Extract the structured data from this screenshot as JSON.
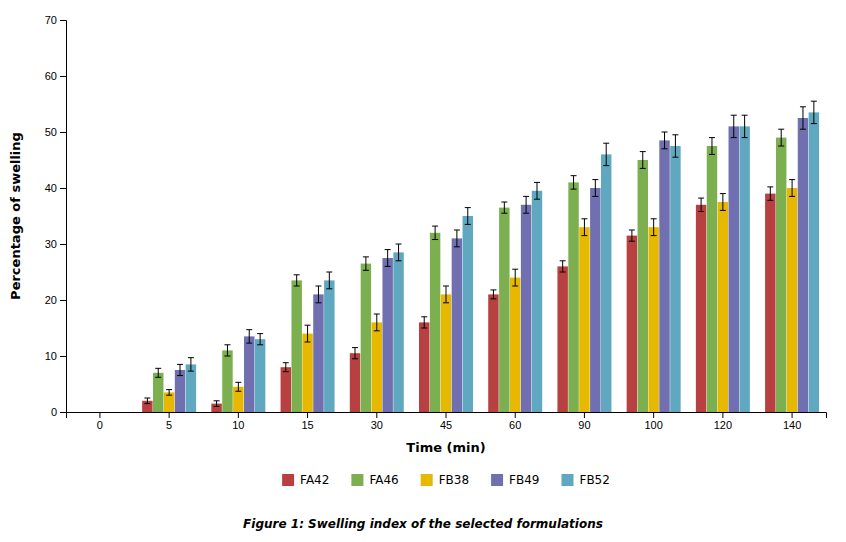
{
  "chart_data": {
    "type": "bar",
    "title": "Figure 1: Swelling index of the selected formulations",
    "xlabel": "Time (min)",
    "ylabel": "Percentage of swelling",
    "categories": [
      "0",
      "5",
      "10",
      "15",
      "30",
      "45",
      "60",
      "90",
      "100",
      "120",
      "140"
    ],
    "series": [
      {
        "name": "FA42",
        "color": "#B94040",
        "values": [
          null,
          2.0,
          1.5,
          8.0,
          10.5,
          16.0,
          21.0,
          26.0,
          31.5,
          37.0,
          39.0
        ],
        "errors": [
          null,
          0.5,
          0.5,
          0.8,
          1.0,
          1.0,
          0.8,
          1.0,
          1.0,
          1.2,
          1.2
        ]
      },
      {
        "name": "FA46",
        "color": "#7CAF50",
        "values": [
          null,
          7.0,
          11.0,
          23.5,
          26.5,
          32.0,
          36.5,
          41.0,
          45.0,
          47.5,
          49.0
        ],
        "errors": [
          null,
          0.8,
          1.0,
          1.0,
          1.2,
          1.2,
          1.0,
          1.2,
          1.5,
          1.5,
          1.5
        ]
      },
      {
        "name": "FB38",
        "color": "#E6B800",
        "values": [
          null,
          3.5,
          4.5,
          14.0,
          16.0,
          21.0,
          24.0,
          33.0,
          33.0,
          37.5,
          40.0
        ],
        "errors": [
          null,
          0.5,
          0.8,
          1.5,
          1.5,
          1.5,
          1.5,
          1.5,
          1.5,
          1.5,
          1.5
        ]
      },
      {
        "name": "FB49",
        "color": "#7070B0",
        "values": [
          null,
          7.5,
          13.5,
          21.0,
          27.5,
          31.0,
          37.0,
          40.0,
          48.5,
          51.0,
          52.5
        ],
        "errors": [
          null,
          1.0,
          1.2,
          1.5,
          1.5,
          1.5,
          1.5,
          1.5,
          1.5,
          2.0,
          2.0
        ]
      },
      {
        "name": "FB52",
        "color": "#60A8C0",
        "values": [
          null,
          8.5,
          13.0,
          23.5,
          28.5,
          35.0,
          39.5,
          46.0,
          47.5,
          51.0,
          53.5
        ],
        "errors": [
          null,
          1.2,
          1.0,
          1.5,
          1.5,
          1.5,
          1.5,
          2.0,
          2.0,
          2.0,
          2.0
        ]
      }
    ],
    "ylim": [
      0,
      70
    ],
    "yticks": [
      0,
      10,
      20,
      30,
      40,
      50,
      60,
      70
    ],
    "grid": false,
    "legend": "bottom"
  }
}
